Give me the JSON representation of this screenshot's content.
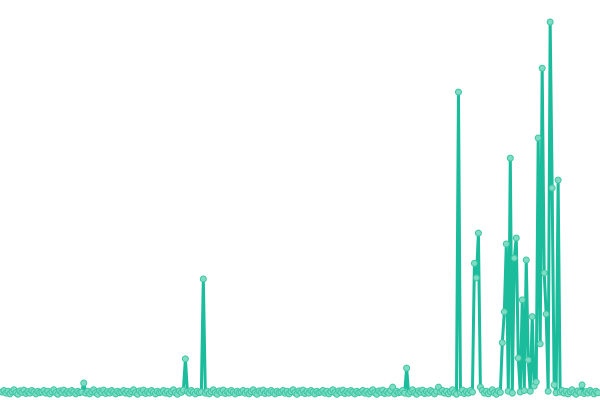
{
  "chart_data": {
    "type": "line",
    "title": "",
    "xlabel": "",
    "ylabel": "",
    "axes_visible": false,
    "grid": false,
    "legend": "none",
    "markers": true,
    "ylim": [
      0,
      100
    ],
    "colors": {
      "line": "#1abc9c",
      "marker_fill": "#7fdcc4",
      "marker_stroke": "#3cc6a2"
    },
    "series": [
      {
        "values": [
          0.8,
          1.2,
          0.5,
          1.0,
          0.3,
          0.9,
          1.4,
          0.6,
          0.2,
          1.1,
          0.7,
          1.3,
          0.4,
          0.9,
          0.5,
          1.2,
          0.8,
          0.3,
          1.0,
          0.6,
          0.8,
          1.2,
          0.5,
          1.0,
          0.3,
          0.9,
          1.4,
          0.6,
          0.2,
          1.1,
          0.7,
          1.3,
          0.4,
          0.9,
          0.5,
          1.2,
          0.8,
          0.3,
          1.0,
          0.6,
          0.8,
          3.2,
          0.5,
          1.0,
          0.3,
          0.9,
          1.4,
          0.6,
          0.2,
          1.1,
          0.7,
          1.3,
          0.4,
          0.9,
          0.5,
          1.2,
          0.8,
          0.3,
          1.0,
          0.6,
          0.8,
          1.2,
          0.5,
          1.0,
          0.3,
          0.9,
          1.4,
          0.6,
          0.2,
          1.1,
          0.7,
          1.3,
          0.4,
          0.9,
          0.5,
          1.2,
          0.8,
          0.3,
          1.0,
          0.6,
          0.8,
          1.2,
          0.5,
          1.0,
          0.3,
          0.9,
          1.4,
          0.6,
          0.2,
          1.1,
          0.7,
          1.3,
          9.7,
          0.9,
          0.5,
          1.2,
          0.8,
          0.3,
          1.0,
          0.6,
          0.8,
          31.1,
          0.5,
          1.0,
          0.3,
          0.9,
          1.4,
          0.6,
          0.2,
          1.1,
          0.7,
          1.3,
          0.4,
          0.9,
          0.5,
          1.2,
          0.8,
          0.3,
          1.0,
          0.6,
          0.8,
          1.2,
          0.5,
          1.0,
          0.3,
          0.9,
          1.4,
          0.6,
          0.2,
          1.1,
          0.7,
          1.3,
          0.4,
          0.9,
          0.5,
          1.2,
          0.8,
          0.3,
          1.0,
          0.6,
          0.8,
          1.2,
          0.5,
          1.0,
          0.3,
          0.9,
          1.4,
          0.6,
          0.2,
          1.1,
          0.7,
          1.3,
          0.4,
          0.9,
          0.5,
          1.2,
          0.8,
          0.3,
          1.0,
          0.6,
          0.8,
          1.2,
          0.5,
          1.0,
          0.3,
          0.9,
          1.4,
          0.6,
          0.2,
          1.1,
          0.7,
          1.3,
          0.4,
          0.9,
          0.5,
          1.2,
          0.8,
          0.3,
          1.0,
          0.6,
          0.8,
          1.2,
          0.5,
          1.0,
          0.3,
          0.9,
          1.4,
          0.6,
          0.2,
          1.1,
          0.7,
          1.3,
          0.4,
          0.9,
          0.5,
          1.2,
          2.1,
          0.3,
          1.0,
          0.6,
          0.8,
          1.2,
          0.5,
          7.2,
          0.3,
          0.9,
          1.4,
          0.6,
          0.2,
          1.1,
          0.7,
          1.3,
          0.4,
          0.9,
          0.5,
          1.2,
          0.8,
          0.3,
          1.0,
          2.1,
          0.8,
          1.2,
          0.5,
          1.0,
          0.3,
          0.9,
          1.4,
          0.6,
          0.2,
          81.2,
          0.7,
          1.3,
          0.4,
          0.9,
          0.5,
          1.2,
          0.8,
          35.3,
          31.4,
          43.4,
          2.1,
          1.2,
          0.5,
          1.0,
          0.3,
          0.9,
          1.4,
          0.6,
          0.2,
          1.1,
          0.7,
          14.0,
          22.3,
          40.5,
          1.0,
          63.5,
          0.5,
          36.7,
          42.1,
          9.9,
          0.8,
          25.5,
          1.2,
          36.2,
          9.4,
          1.0,
          21.0,
          2.4,
          3.5,
          68.9,
          13.7,
          87.6,
          32.7,
          21.7,
          1.0,
          100,
          55.5,
          2.7,
          0.6,
          57.6,
          0.8,
          1.2,
          0.5,
          1.0,
          0.3,
          0.9,
          1.4,
          0.6,
          0.2,
          1.1,
          0.7,
          2.7,
          0.4,
          0.9,
          0.5,
          1.2,
          0.8,
          0.3,
          1.0,
          0.6
        ]
      }
    ]
  }
}
